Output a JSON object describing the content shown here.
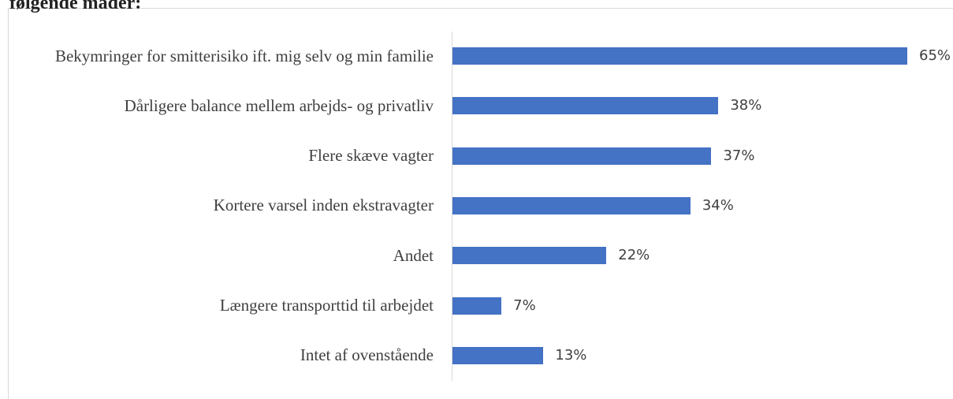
{
  "chart_data": {
    "type": "bar",
    "orientation": "horizontal",
    "title": "følgende måder:",
    "categories": [
      "Bekymringer for smitterisiko ift. mig selv og min familie",
      "Dårligere balance mellem arbejds- og privatliv",
      "Flere skæve vagter",
      "Kortere varsel inden ekstravagter",
      "Andet",
      "Længere transporttid til arbejdet",
      "Intet af ovenstående"
    ],
    "values": [
      65,
      38,
      37,
      34,
      22,
      7,
      13
    ],
    "value_labels": [
      "65%",
      "38%",
      "37%",
      "34%",
      "22%",
      "7%",
      "13%"
    ],
    "color": "#4472c4"
  }
}
